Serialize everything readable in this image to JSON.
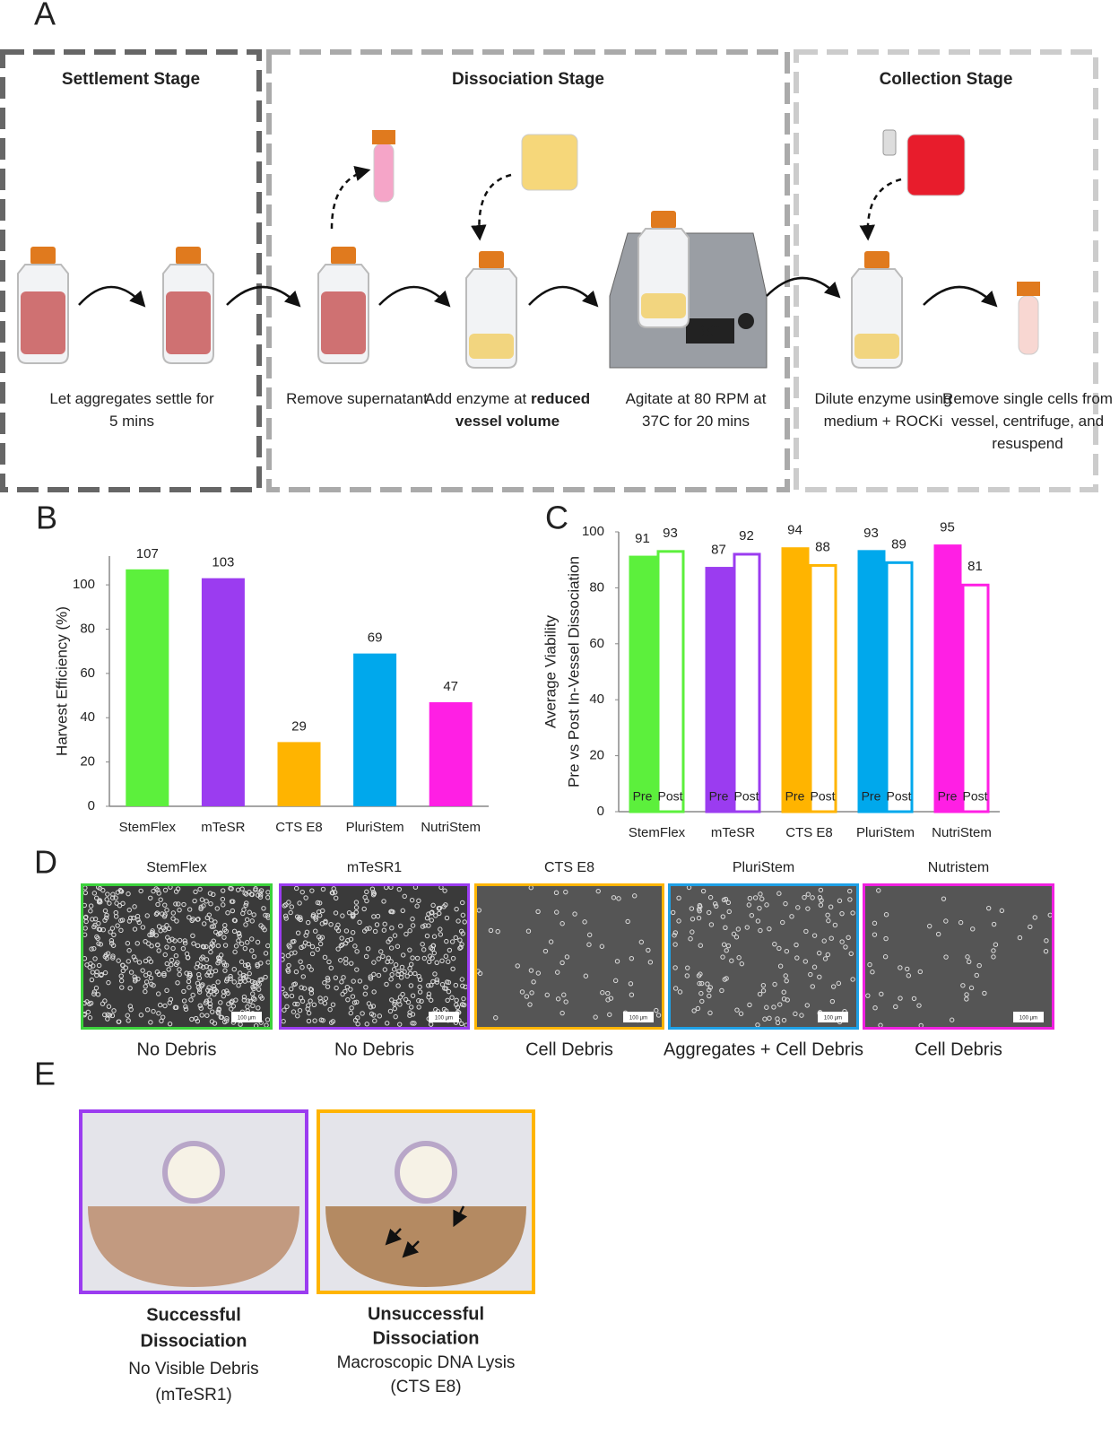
{
  "panel_a": {
    "label": "A",
    "stages": [
      {
        "title": "Settlement Stage",
        "steps": [
          {
            "text": "Let aggregates settle for 5 mins"
          }
        ]
      },
      {
        "title": "Dissociation Stage",
        "steps": [
          {
            "text": "Remove supernatant"
          },
          {
            "text": "Add enzyme at",
            "bold": "reduced vessel volume"
          },
          {
            "text": "Agitate at 80 RPM at 37C for 20 mins"
          }
        ]
      },
      {
        "title": "Collection Stage",
        "steps": [
          {
            "text": "Dilute enzyme using medium + ROCKi"
          },
          {
            "text": "Remove single cells from vessel, centrifuge, and resuspend"
          }
        ]
      }
    ],
    "display": "80"
  },
  "chart_data": [
    {
      "type": "bar",
      "panel": "B",
      "y_label": "Harvest Efficiency (%)",
      "categories": [
        "StemFlex",
        "mTeSR",
        "CTS E8",
        "PluriStem",
        "NutriStem"
      ],
      "values": [
        107,
        103,
        29,
        69,
        47
      ],
      "colors": [
        "#5cf03c",
        "#9b3cf0",
        "#ffb400",
        "#00a8ec",
        "#ff1fe4"
      ],
      "ylim": [
        0,
        113
      ],
      "yticks": [
        0,
        20,
        40,
        60,
        80,
        100
      ]
    },
    {
      "type": "grouped-bar",
      "panel": "C",
      "y_label": [
        "Average Viability",
        "Pre vs Post In-Vessel Dissociation"
      ],
      "categories": [
        "StemFlex",
        "mTeSR",
        "CTS E8",
        "PluriStem",
        "NutriStem"
      ],
      "colors": [
        "#5cf03c",
        "#9b3cf0",
        "#ffb400",
        "#00a8ec",
        "#ff1fe4"
      ],
      "series": [
        {
          "name": "Pre",
          "filled": true,
          "values": [
            91,
            87,
            94,
            93,
            95
          ]
        },
        {
          "name": "Post",
          "filled": false,
          "values": [
            93,
            92,
            88,
            89,
            81
          ]
        }
      ],
      "ylim": [
        0,
        100
      ],
      "yticks": [
        0,
        20,
        40,
        60,
        80,
        100
      ]
    }
  ],
  "panel_d": {
    "label": "D",
    "scale_bar": "100 µm",
    "images": [
      {
        "title": "StemFlex",
        "caption": "No Debris",
        "color": "#3cd23c"
      },
      {
        "title": "mTeSR1",
        "caption": "No Debris",
        "color": "#9b3cf0"
      },
      {
        "title": "CTS E8",
        "caption": "Cell Debris",
        "color": "#ffb400"
      },
      {
        "title": "PluriStem",
        "caption": "Aggregates + Cell Debris",
        "color": "#1ea0e6"
      },
      {
        "title": "Nutristem",
        "caption": "Cell Debris",
        "color": "#f020e0"
      }
    ]
  },
  "panel_e": {
    "label": "E",
    "images": [
      {
        "title": [
          "Successful",
          "Dissociation"
        ],
        "subtitle": "No Visible Debris",
        "note": "(mTeSR1)",
        "color": "#9b3cf0"
      },
      {
        "title": [
          "Unsuccessful",
          "Dissociation"
        ],
        "subtitle": "Macroscopic DNA Lysis",
        "note": "(CTS E8)",
        "color": "#ffb400"
      }
    ]
  }
}
